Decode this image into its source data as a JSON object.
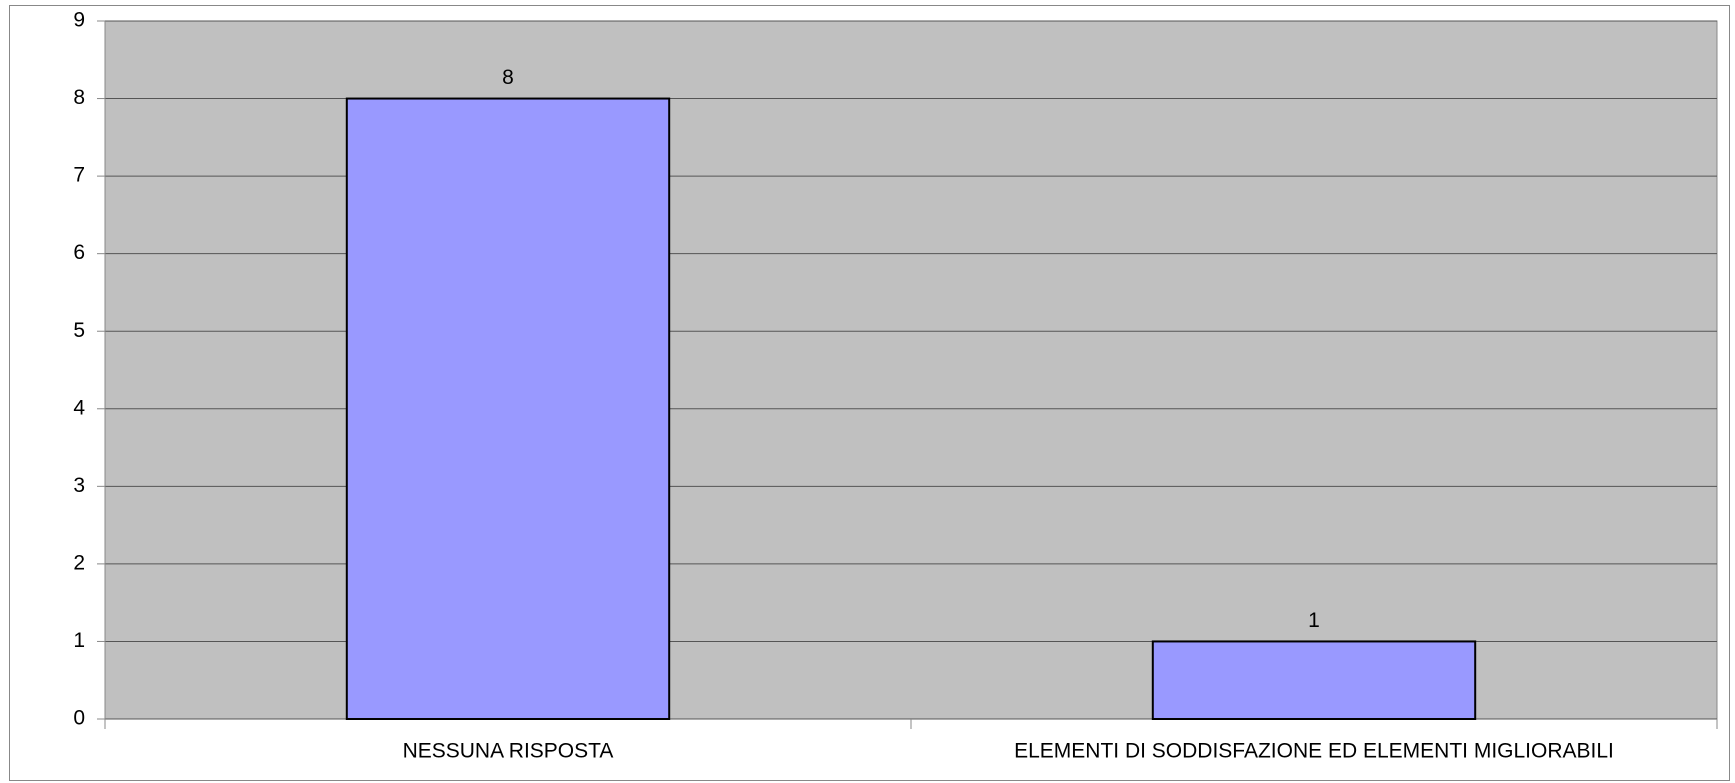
{
  "chart_data": {
    "type": "bar",
    "categories": [
      "NESSUNA RISPOSTA",
      "ELEMENTI DI SODDISFAZIONE ED ELEMENTI MIGLIORABILI"
    ],
    "values": [
      8,
      1
    ],
    "color": "#9999ff",
    "background": "#c0c0c0",
    "ylim": [
      0,
      9
    ],
    "yticks": [
      0,
      1,
      2,
      3,
      4,
      5,
      6,
      7,
      8,
      9
    ],
    "grid": true
  }
}
